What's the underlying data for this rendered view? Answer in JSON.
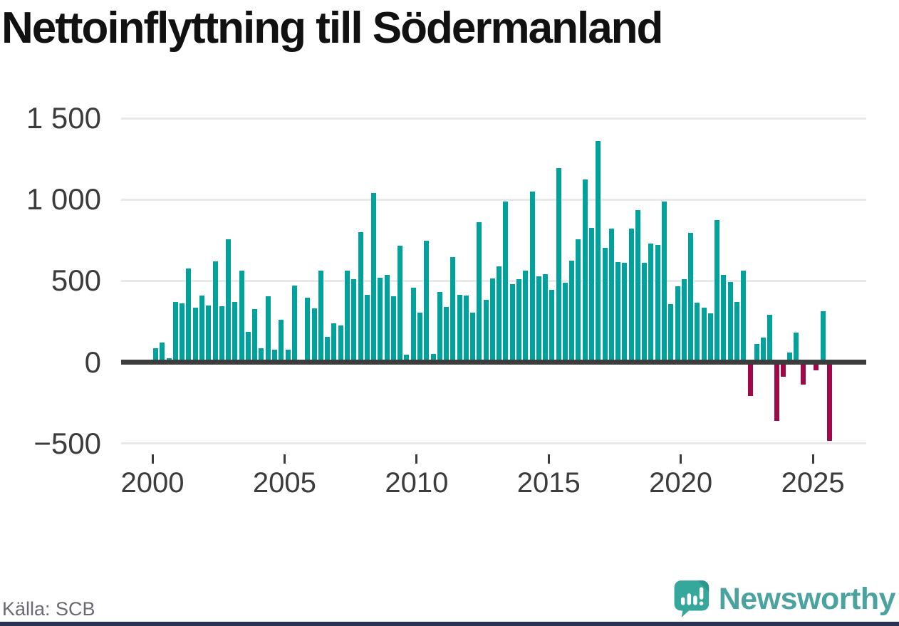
{
  "title": "Nettoinflyttning till Södermanland",
  "source": "Källa: SCB",
  "logo": {
    "wordmark": "Newsworthy",
    "icon": "bar-chart-speech-bubble-icon"
  },
  "colors": {
    "positive": "#00a39b",
    "negative": "#a00948",
    "zero_line": "#3d3d3d",
    "gridline": "#e9e9e9",
    "title_text": "#111111",
    "axis_text": "#3c3c3c",
    "source_text": "#6a6a72",
    "logo_teal": "#4ba39f",
    "logo_bubble": "#35a79b",
    "footer_bar": "#2a3254"
  },
  "y_axis": {
    "ticks": [
      {
        "label": "1 500",
        "value": 1500
      },
      {
        "label": "1 000",
        "value": 1000
      },
      {
        "label": "500",
        "value": 500
      },
      {
        "label": "0",
        "value": 0
      },
      {
        "label": "−500",
        "value": -500
      }
    ]
  },
  "x_axis": {
    "ticks": [
      {
        "label": "2000",
        "year": 2000
      },
      {
        "label": "2005",
        "year": 2005
      },
      {
        "label": "2010",
        "year": 2010
      },
      {
        "label": "2015",
        "year": 2015
      },
      {
        "label": "2020",
        "year": 2020
      },
      {
        "label": "2025",
        "year": 2025
      }
    ]
  },
  "chart_data": {
    "type": "bar",
    "title": "Nettoinflyttning till Södermanland",
    "frequency": "quarterly",
    "xlabel": "",
    "ylabel": "",
    "ylim": [
      -500,
      1500
    ],
    "grid": true,
    "categories": [
      "2000 Q1",
      "2000 Q2",
      "2000 Q3",
      "2000 Q4",
      "2001 Q1",
      "2001 Q2",
      "2001 Q3",
      "2001 Q4",
      "2002 Q1",
      "2002 Q2",
      "2002 Q3",
      "2002 Q4",
      "2003 Q1",
      "2003 Q2",
      "2003 Q3",
      "2003 Q4",
      "2004 Q1",
      "2004 Q2",
      "2004 Q3",
      "2004 Q4",
      "2005 Q1",
      "2005 Q2",
      "2005 Q3",
      "2005 Q4",
      "2006 Q1",
      "2006 Q2",
      "2006 Q3",
      "2006 Q4",
      "2007 Q1",
      "2007 Q2",
      "2007 Q3",
      "2007 Q4",
      "2008 Q1",
      "2008 Q2",
      "2008 Q3",
      "2008 Q4",
      "2009 Q1",
      "2009 Q2",
      "2009 Q3",
      "2009 Q4",
      "2010 Q1",
      "2010 Q2",
      "2010 Q3",
      "2010 Q4",
      "2011 Q1",
      "2011 Q2",
      "2011 Q3",
      "2011 Q4",
      "2012 Q1",
      "2012 Q2",
      "2012 Q3",
      "2012 Q4",
      "2013 Q1",
      "2013 Q2",
      "2013 Q3",
      "2013 Q4",
      "2014 Q1",
      "2014 Q2",
      "2014 Q3",
      "2014 Q4",
      "2015 Q1",
      "2015 Q2",
      "2015 Q3",
      "2015 Q4",
      "2016 Q1",
      "2016 Q2",
      "2016 Q3",
      "2016 Q4",
      "2017 Q1",
      "2017 Q2",
      "2017 Q3",
      "2017 Q4",
      "2018 Q1",
      "2018 Q2",
      "2018 Q3",
      "2018 Q4",
      "2019 Q1",
      "2019 Q2",
      "2019 Q3",
      "2019 Q4",
      "2020 Q1",
      "2020 Q2",
      "2020 Q3",
      "2020 Q4",
      "2021 Q1",
      "2021 Q2",
      "2021 Q3",
      "2021 Q4",
      "2022 Q1",
      "2022 Q2",
      "2022 Q3",
      "2022 Q4",
      "2023 Q1",
      "2023 Q2",
      "2023 Q3",
      "2023 Q4",
      "2024 Q1",
      "2024 Q2",
      "2024 Q3",
      "2024 Q4",
      "2025 Q1",
      "2025 Q2",
      "2025 Q3"
    ],
    "values": [
      85,
      120,
      25,
      370,
      360,
      575,
      335,
      410,
      350,
      620,
      345,
      755,
      370,
      565,
      185,
      325,
      85,
      405,
      75,
      260,
      75,
      470,
      0,
      395,
      330,
      565,
      155,
      240,
      225,
      565,
      510,
      800,
      415,
      1040,
      520,
      535,
      405,
      715,
      45,
      460,
      305,
      745,
      50,
      430,
      340,
      645,
      415,
      410,
      305,
      860,
      385,
      515,
      590,
      990,
      480,
      510,
      565,
      1050,
      530,
      540,
      445,
      1195,
      490,
      625,
      755,
      1125,
      825,
      1360,
      705,
      820,
      615,
      610,
      820,
      935,
      610,
      730,
      720,
      990,
      355,
      465,
      510,
      795,
      365,
      335,
      300,
      875,
      535,
      495,
      370,
      565,
      -210,
      110,
      150,
      290,
      -360,
      -90,
      60,
      180,
      -140,
      0,
      -50,
      315,
      -485
    ]
  }
}
